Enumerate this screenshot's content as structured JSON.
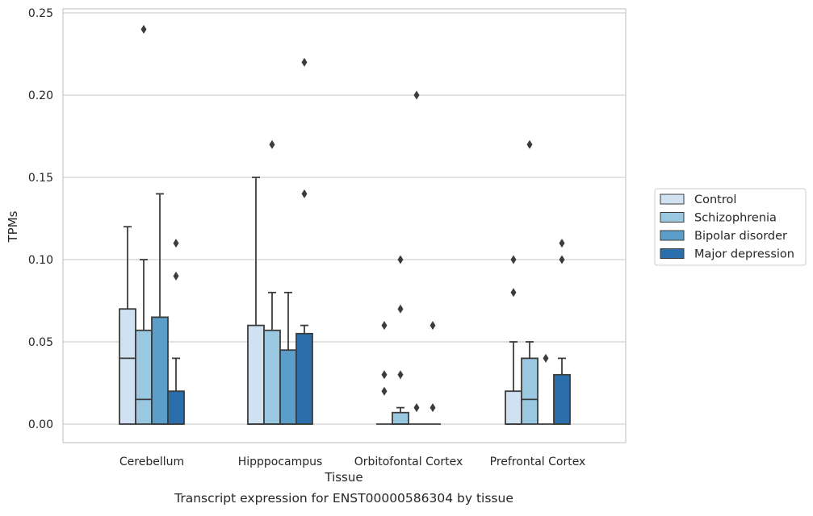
{
  "chart_data": {
    "type": "box",
    "caption": "Transcript expression for ENST00000586304 by tissue",
    "xlabel": "Tissue",
    "ylabel": "TPMs",
    "ylim": [
      -0.012,
      0.252
    ],
    "yticks": [
      "0.00",
      "0.05",
      "0.10",
      "0.15",
      "0.20",
      "0.25"
    ],
    "ytick_values": [
      0,
      0.05,
      0.1,
      0.15,
      0.2,
      0.25
    ],
    "grid": "horizontal",
    "legend_position": "right",
    "categories": [
      "Cerebellum",
      "Hipppocampus",
      "Orbitofontal Cortex",
      "Prefrontal Cortex"
    ],
    "series": [
      {
        "name": "Control",
        "color": "#d0e1f2",
        "boxes": [
          {
            "q1": 0,
            "median": 0.04,
            "q3": 0.07,
            "whisker_low": 0,
            "whisker_high": 0.12,
            "outliers": []
          },
          {
            "q1": 0,
            "median": 0.0,
            "q3": 0.06,
            "whisker_low": 0,
            "whisker_high": 0.15,
            "outliers": []
          },
          {
            "q1": 0,
            "median": 0,
            "q3": 0,
            "whisker_low": 0,
            "whisker_high": 0,
            "outliers": [
              0.02,
              0.03,
              0.06
            ]
          },
          {
            "q1": 0,
            "median": 0.0,
            "q3": 0.02,
            "whisker_low": 0,
            "whisker_high": 0.05,
            "outliers": [
              0.08,
              0.1
            ]
          }
        ]
      },
      {
        "name": "Schizophrenia",
        "color": "#9ac8e0",
        "boxes": [
          {
            "q1": 0,
            "median": 0.015,
            "q3": 0.057,
            "whisker_low": 0,
            "whisker_high": 0.1,
            "outliers": [
              0.24
            ]
          },
          {
            "q1": 0,
            "median": 0.0,
            "q3": 0.057,
            "whisker_low": 0,
            "whisker_high": 0.08,
            "outliers": [
              0.17
            ]
          },
          {
            "q1": 0,
            "median": 0.0,
            "q3": 0.007,
            "whisker_low": 0,
            "whisker_high": 0.01,
            "outliers": [
              0.03,
              0.07,
              0.1
            ]
          },
          {
            "q1": 0,
            "median": 0.015,
            "q3": 0.04,
            "whisker_low": 0,
            "whisker_high": 0.05,
            "outliers": [
              0.17
            ]
          }
        ]
      },
      {
        "name": "Bipolar disorder",
        "color": "#5a9ec9",
        "boxes": [
          {
            "q1": 0,
            "median": 0.0,
            "q3": 0.065,
            "whisker_low": 0,
            "whisker_high": 0.14,
            "outliers": []
          },
          {
            "q1": 0,
            "median": 0.0,
            "q3": 0.045,
            "whisker_low": 0,
            "whisker_high": 0.08,
            "outliers": []
          },
          {
            "q1": 0,
            "median": 0,
            "q3": 0,
            "whisker_low": 0,
            "whisker_high": 0,
            "outliers": [
              0.01,
              0.2
            ]
          },
          {
            "q1": 0,
            "median": 0,
            "q3": 0,
            "whisker_low": 0,
            "whisker_high": 0,
            "outliers": [
              0.04
            ]
          }
        ]
      },
      {
        "name": "Major depression",
        "color": "#2a6eac",
        "boxes": [
          {
            "q1": 0,
            "median": 0.0,
            "q3": 0.02,
            "whisker_low": 0,
            "whisker_high": 0.04,
            "outliers": [
              0.09,
              0.11
            ]
          },
          {
            "q1": 0,
            "median": 0.0,
            "q3": 0.055,
            "whisker_low": 0,
            "whisker_high": 0.06,
            "outliers": [
              0.14,
              0.22
            ]
          },
          {
            "q1": 0,
            "median": 0,
            "q3": 0,
            "whisker_low": 0,
            "whisker_high": 0,
            "outliers": [
              0.01,
              0.06
            ]
          },
          {
            "q1": 0,
            "median": 0.0,
            "q3": 0.03,
            "whisker_low": 0,
            "whisker_high": 0.04,
            "outliers": [
              0.1,
              0.11
            ]
          }
        ]
      }
    ]
  }
}
